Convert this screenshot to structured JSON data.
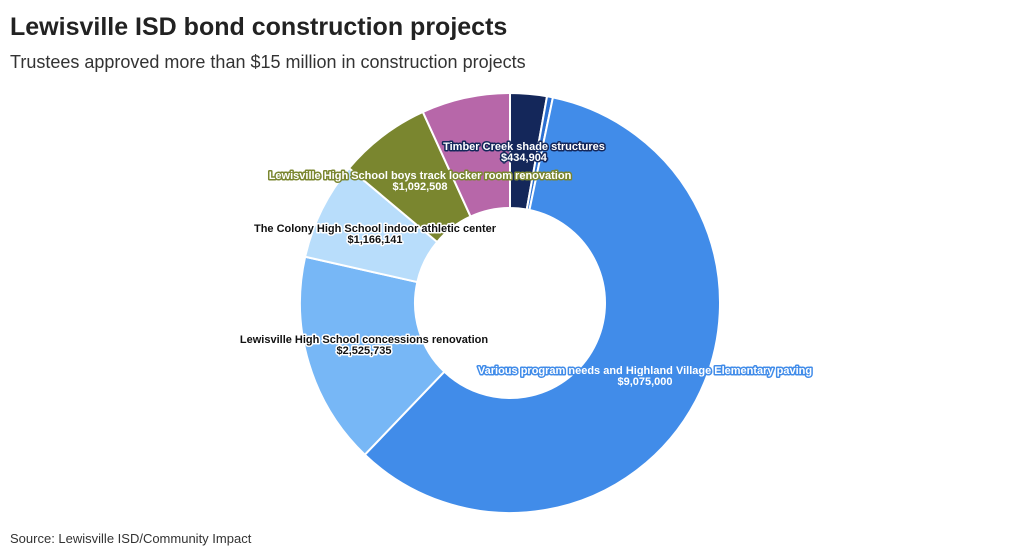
{
  "chart_data": {
    "type": "donut",
    "title": "Lewisville ISD bond construction projects",
    "subtitle": "Trustees approved more than $15 million in construction projects",
    "source": "Source: Lewisville ISD/Community Impact",
    "categories": [
      "Timber Creek shade structures",
      null,
      "Various program needs and Highland Village Elementary paving",
      "Lewisville High School concessions renovation",
      "The Colony High School indoor athletic center",
      "Lewisville High School boys track locker room renovation",
      null
    ],
    "values": [
      434904,
      70000,
      9075000,
      2525735,
      1166141,
      1092508,
      1050000
    ],
    "value_labels": [
      "$434,904",
      null,
      "$9,075,000",
      "$2,525,735",
      "$1,166,141",
      "$1,092,508",
      null
    ],
    "colors": [
      "#14275a",
      "#2b6fd1",
      "#418ce9",
      "#77b7f6",
      "#b8ddfb",
      "#7a862f",
      "#b767a9"
    ]
  }
}
